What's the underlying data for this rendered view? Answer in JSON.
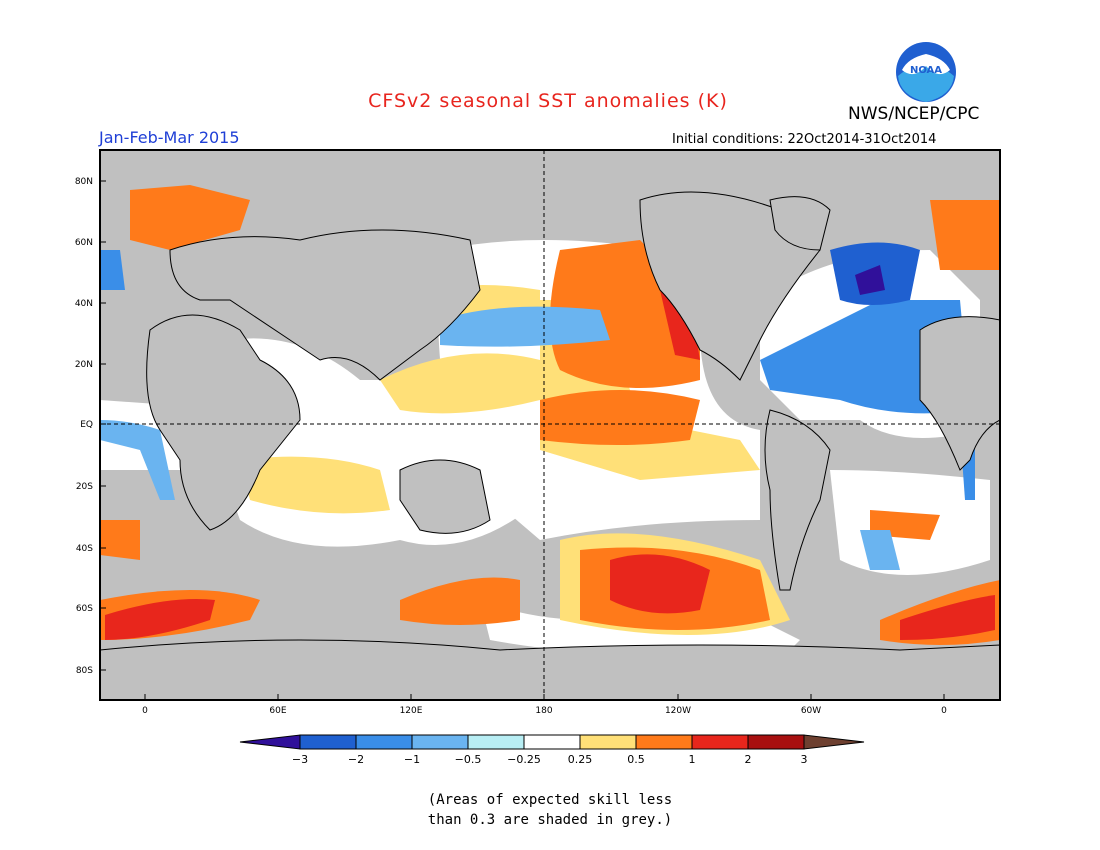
{
  "header": {
    "title": "CFSv2 seasonal SST anomalies (K)",
    "org": "NWS/NCEP/CPC",
    "season": "Jan-Feb-Mar 2015",
    "initial_conditions": "Initial conditions: 22Oct2014-31Oct2014"
  },
  "logo": {
    "text": "NOAA"
  },
  "map": {
    "lat_labels": [
      "80N",
      "60N",
      "40N",
      "20N",
      "EQ",
      "20S",
      "40S",
      "60S",
      "80S"
    ],
    "lon_labels": [
      "0",
      "60E",
      "120E",
      "180",
      "120W",
      "60W",
      "0"
    ],
    "colors": {
      "land": "#c0c0c0",
      "grey_shade": "#c0c0c0",
      "neutral": "#ffffff"
    }
  },
  "colorbar": {
    "labels": [
      "−3",
      "−2",
      "−1",
      "−0.5",
      "−0.25",
      "0.25",
      "0.5",
      "1",
      "2",
      "3"
    ],
    "colors": [
      "#30109a",
      "#1f60d0",
      "#3a8ee8",
      "#6ab4f0",
      "#b8eef4",
      "#ffffff",
      "#ffe078",
      "#ff7a1a",
      "#e8261c",
      "#a81010",
      "#6e4030"
    ]
  },
  "footnote": {
    "line1": "(Areas of expected skill less",
    "line2": "than 0.3 are shaded in grey.)"
  }
}
